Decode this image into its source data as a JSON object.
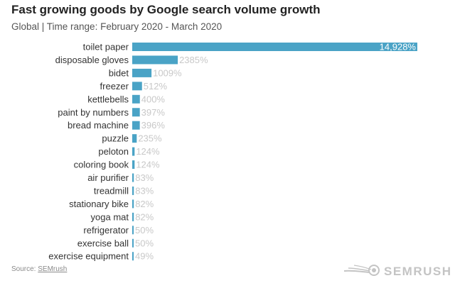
{
  "title": "Fast growing goods by Google search volume growth",
  "subtitle": "Global | Time range: February 2020 - March 2020",
  "source": {
    "prefix": "Source: ",
    "link_text": "SEMrush"
  },
  "logo": {
    "text": "SEMRUSH",
    "icon": "semrush-fireball-icon"
  },
  "colors": {
    "bar": "#4aa3c6",
    "value_label": "#c8c8c8",
    "category_label": "#333333"
  },
  "chart_data": {
    "type": "bar",
    "orientation": "horizontal",
    "title": "Fast growing goods by Google search volume growth",
    "subtitle": "Global | Time range: February 2020 - March 2020",
    "xlabel": "",
    "ylabel": "",
    "unit": "%",
    "grid": false,
    "categories": [
      "toilet paper",
      "disposable gloves",
      "bidet",
      "freezer",
      "kettlebells",
      "paint by numbers",
      "bread machine",
      "puzzle",
      "peloton",
      "coloring book",
      "air purifier",
      "treadmill",
      "stationary bike",
      "yoga mat",
      "refrigerator",
      "exercise ball",
      "exercise equipment"
    ],
    "values": [
      14928,
      2385,
      1009,
      512,
      400,
      397,
      396,
      235,
      124,
      124,
      83,
      83,
      82,
      82,
      50,
      50,
      49
    ],
    "value_labels": [
      "14,928%",
      "2385%",
      "1009%",
      "512%",
      "400%",
      "397%",
      "396%",
      "235%",
      "124%",
      "124%",
      "83%",
      "83%",
      "82%",
      "82%",
      "50%",
      "50%",
      "49%"
    ]
  }
}
